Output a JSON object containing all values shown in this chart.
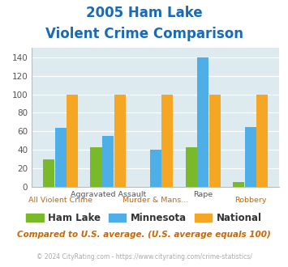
{
  "title_line1": "2005 Ham Lake",
  "title_line2": "Violent Crime Comparison",
  "categories": [
    "All Violent Crime",
    "Aggravated Assault",
    "Murder & Mans...",
    "Rape",
    "Robbery"
  ],
  "ham_lake": [
    30,
    43,
    0,
    43,
    5
  ],
  "minnesota": [
    64,
    55,
    40,
    140,
    65
  ],
  "national": [
    100,
    100,
    100,
    100,
    100
  ],
  "color_hamlake": "#7aba2a",
  "color_minnesota": "#4daee8",
  "color_national": "#f5a623",
  "color_title": "#1a6ab5",
  "color_bg": "#ddeaf0",
  "color_footnote": "#cc6600",
  "color_copyright": "#aaaaaa",
  "ylim": [
    0,
    150
  ],
  "yticks": [
    0,
    20,
    40,
    60,
    80,
    100,
    120,
    140
  ],
  "footnote": "Compared to U.S. average. (U.S. average equals 100)",
  "copyright": "© 2024 CityRating.com - https://www.cityrating.com/crime-statistics/",
  "legend_labels": [
    "Ham Lake",
    "Minnesota",
    "National"
  ],
  "row1_indices": [
    1,
    3
  ],
  "row1_texts": [
    "Aggravated Assault",
    "Rape"
  ],
  "row2_indices": [
    0,
    2,
    4
  ],
  "row2_texts": [
    "All Violent Crime",
    "Murder & Mans...",
    "Robbery"
  ]
}
